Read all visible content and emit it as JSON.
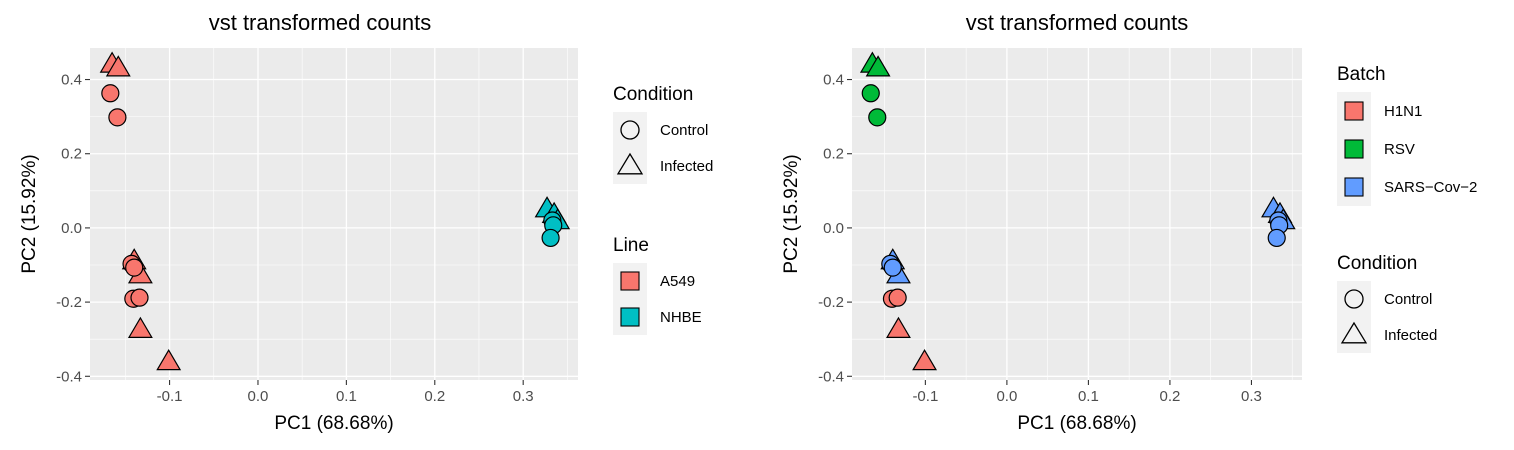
{
  "chart_data": [
    {
      "type": "scatter",
      "title": "vst transformed counts",
      "xlabel": "PC1 (68.68%)",
      "ylabel": "PC2 (15.92%)",
      "xlim": [
        -0.19,
        0.362
      ],
      "ylim": [
        -0.41,
        0.485
      ],
      "xticks": [
        "-0.1",
        "0.0",
        "0.1",
        "0.2",
        "0.3"
      ],
      "xtick_values": [
        -0.1,
        0.0,
        0.1,
        0.2,
        0.3
      ],
      "yticks": [
        "-0.4",
        "-0.2",
        "0.0",
        "0.2",
        "0.4"
      ],
      "ytick_values": [
        -0.4,
        -0.2,
        0.0,
        0.2,
        0.4
      ],
      "grid": true,
      "color_by": "line",
      "legends": [
        {
          "title": "Condition",
          "kind": "shape",
          "items": [
            {
              "label": "Control",
              "shape": "circle"
            },
            {
              "label": "Infected",
              "shape": "triangle"
            }
          ]
        },
        {
          "title": "Line",
          "kind": "fill",
          "items": [
            {
              "label": "A549",
              "color": "#F8766D"
            },
            {
              "label": "NHBE",
              "color": "#00BFC4"
            }
          ]
        }
      ]
    },
    {
      "type": "scatter",
      "title": "vst transformed counts",
      "xlabel": "PC1 (68.68%)",
      "ylabel": "PC2 (15.92%)",
      "xlim": [
        -0.19,
        0.362
      ],
      "ylim": [
        -0.41,
        0.485
      ],
      "xticks": [
        "-0.1",
        "0.0",
        "0.1",
        "0.2",
        "0.3"
      ],
      "xtick_values": [
        -0.1,
        0.0,
        0.1,
        0.2,
        0.3
      ],
      "yticks": [
        "-0.4",
        "-0.2",
        "0.0",
        "0.2",
        "0.4"
      ],
      "ytick_values": [
        -0.4,
        -0.2,
        0.0,
        0.2,
        0.4
      ],
      "grid": true,
      "color_by": "batch",
      "legends": [
        {
          "title": "Batch",
          "kind": "fill",
          "items": [
            {
              "label": "H1N1",
              "color": "#F8766D"
            },
            {
              "label": "RSV",
              "color": "#00BA38"
            },
            {
              "label": "SARS−Cov−2",
              "color": "#619CFF"
            }
          ]
        },
        {
          "title": "Condition",
          "kind": "shape",
          "items": [
            {
              "label": "Control",
              "shape": "circle"
            },
            {
              "label": "Infected",
              "shape": "triangle"
            }
          ]
        }
      ]
    }
  ],
  "points": [
    {
      "x": -0.167,
      "y": 0.363,
      "condition": "Control",
      "line": "A549",
      "batch": "RSV"
    },
    {
      "x": -0.159,
      "y": 0.298,
      "condition": "Control",
      "line": "A549",
      "batch": "RSV"
    },
    {
      "x": -0.165,
      "y": 0.44,
      "condition": "Infected",
      "line": "A549",
      "batch": "RSV"
    },
    {
      "x": -0.158,
      "y": 0.43,
      "condition": "Infected",
      "line": "A549",
      "batch": "RSV"
    },
    {
      "x": -0.143,
      "y": -0.097,
      "condition": "Control",
      "line": "A549",
      "batch": "SARS−Cov−2"
    },
    {
      "x": -0.14,
      "y": -0.107,
      "condition": "Control",
      "line": "A549",
      "batch": "SARS−Cov−2"
    },
    {
      "x": -0.14,
      "y": -0.09,
      "condition": "Infected",
      "line": "A549",
      "batch": "SARS−Cov−2"
    },
    {
      "x": -0.133,
      "y": -0.128,
      "condition": "Infected",
      "line": "A549",
      "batch": "SARS−Cov−2"
    },
    {
      "x": -0.141,
      "y": -0.191,
      "condition": "Control",
      "line": "A549",
      "batch": "H1N1"
    },
    {
      "x": -0.134,
      "y": -0.188,
      "condition": "Control",
      "line": "A549",
      "batch": "H1N1"
    },
    {
      "x": -0.133,
      "y": -0.275,
      "condition": "Infected",
      "line": "A549",
      "batch": "H1N1"
    },
    {
      "x": -0.101,
      "y": -0.362,
      "condition": "Infected",
      "line": "A549",
      "batch": "H1N1"
    },
    {
      "x": 0.327,
      "y": 0.05,
      "condition": "Infected",
      "line": "NHBE",
      "batch": "SARS−Cov−2"
    },
    {
      "x": 0.335,
      "y": 0.035,
      "condition": "Infected",
      "line": "NHBE",
      "batch": "SARS−Cov−2"
    },
    {
      "x": 0.339,
      "y": 0.018,
      "condition": "Infected",
      "line": "NHBE",
      "batch": "SARS−Cov−2"
    },
    {
      "x": 0.333,
      "y": 0.02,
      "condition": "Control",
      "line": "NHBE",
      "batch": "SARS−Cov−2"
    },
    {
      "x": 0.334,
      "y": 0.007,
      "condition": "Control",
      "line": "NHBE",
      "batch": "SARS−Cov−2"
    },
    {
      "x": 0.331,
      "y": -0.027,
      "condition": "Control",
      "line": "NHBE",
      "batch": "SARS−Cov−2"
    }
  ],
  "colors": {
    "line": {
      "A549": "#F8766D",
      "NHBE": "#00BFC4"
    },
    "batch": {
      "H1N1": "#F8766D",
      "RSV": "#00BA38",
      "SARS−Cov−2": "#619CFF"
    },
    "panel_bg": "#EBEBEB",
    "grid": "#FFFFFF"
  }
}
